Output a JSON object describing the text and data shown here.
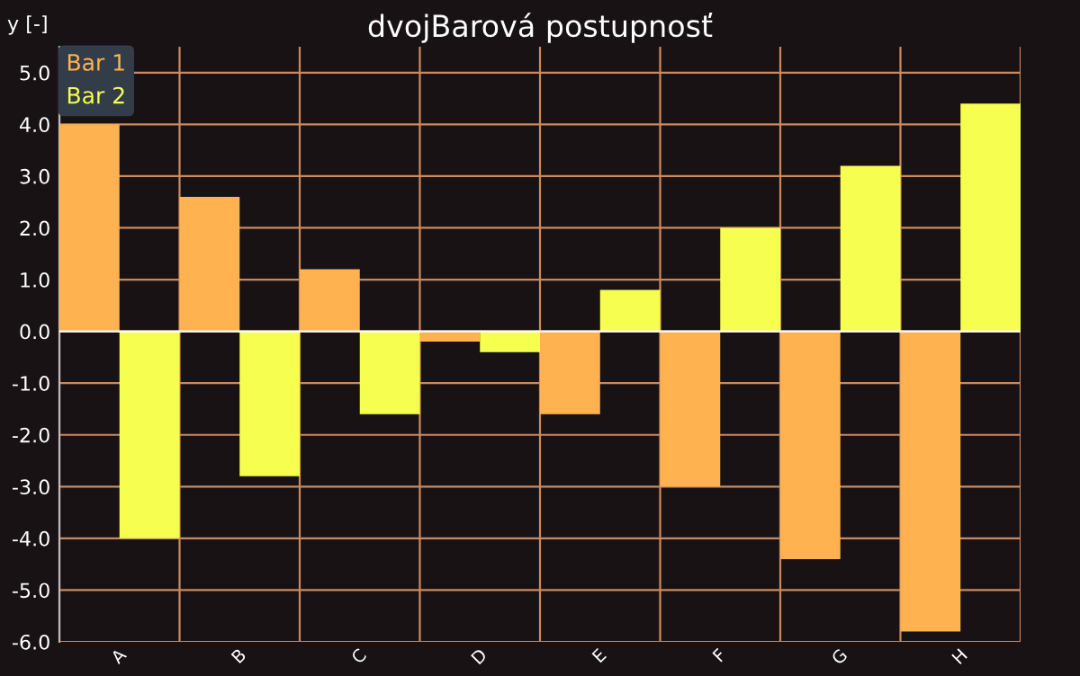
{
  "chart_data": {
    "type": "bar",
    "title": "dvojBarová postupnosť",
    "ylabel": "y [-]",
    "categories": [
      "A",
      "B",
      "C",
      "D",
      "E",
      "F",
      "G",
      "H"
    ],
    "series": [
      {
        "name": "Bar 1",
        "color": "#ffb24f",
        "values": [
          4.0,
          2.6,
          1.2,
          -0.2,
          -1.6,
          -3.0,
          -4.4,
          -5.8
        ]
      },
      {
        "name": "Bar 2",
        "color": "#f6ff4f",
        "values": [
          -4.0,
          -2.8,
          -1.6,
          -0.4,
          0.8,
          2.0,
          3.2,
          4.4
        ]
      }
    ],
    "ylim": [
      -6.0,
      5.5
    ],
    "yticks": [
      {
        "value": -6,
        "label": "-6.0"
      },
      {
        "value": -5,
        "label": "-5.0"
      },
      {
        "value": -4,
        "label": "-4.0"
      },
      {
        "value": -3,
        "label": "-3.0"
      },
      {
        "value": -2,
        "label": "-2.0"
      },
      {
        "value": -1,
        "label": "-1.0"
      },
      {
        "value": 0,
        "label": "0.0"
      },
      {
        "value": 1,
        "label": "1.0"
      },
      {
        "value": 2,
        "label": "2.0"
      },
      {
        "value": 3,
        "label": "3.0"
      },
      {
        "value": 4,
        "label": "4.0"
      },
      {
        "value": 5,
        "label": "5.0"
      }
    ],
    "grid": true,
    "legend": "top left"
  }
}
